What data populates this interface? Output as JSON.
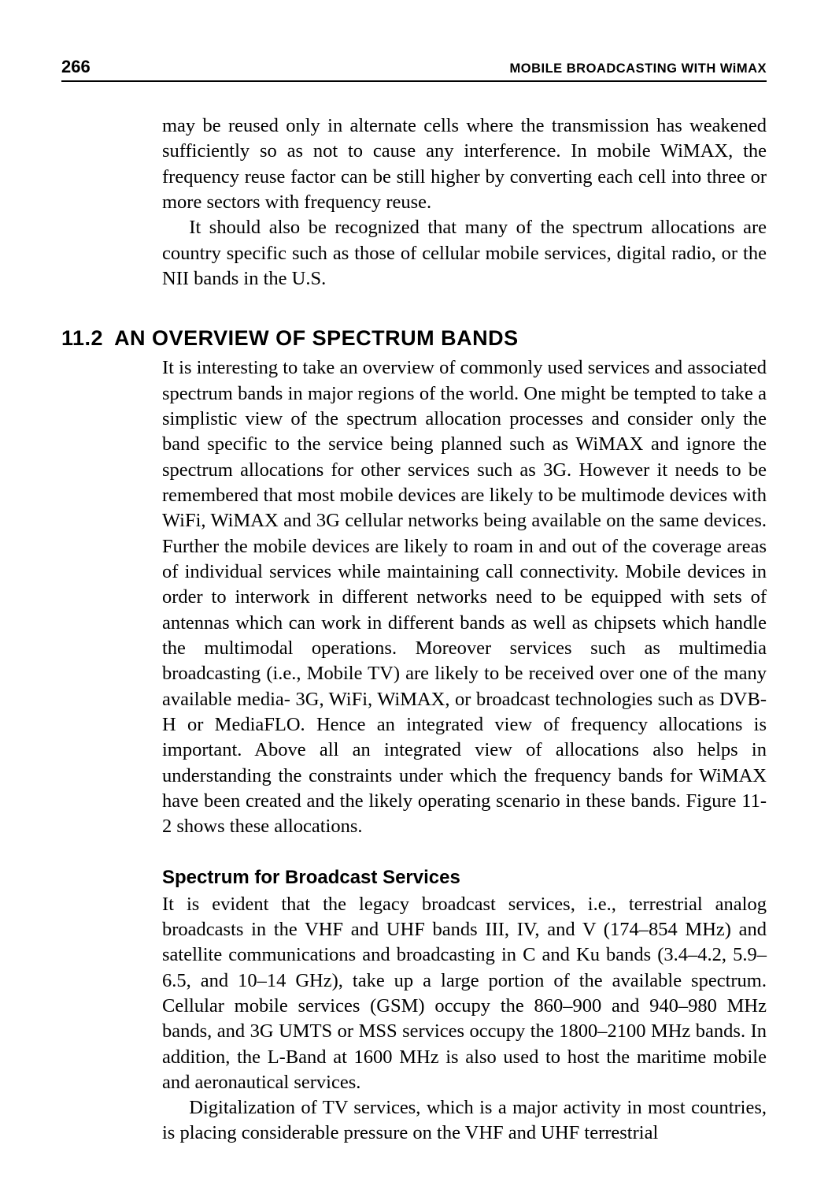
{
  "header": {
    "page_number": "266",
    "running_head": "MOBILE BROADCASTING WITH WiMAX"
  },
  "intro": {
    "p1": "may be reused only in alternate cells where the transmission has weakened sufficiently so as not to cause any interference. In mobile WiMAX, the frequency reuse factor can be still higher by converting each cell into three or more sectors with frequency reuse.",
    "p2": "It should also be recognized that many of the spectrum allocations are country specific such as those of cellular mobile services, digital radio, or the NII bands in the U.S."
  },
  "section": {
    "number": "11.2",
    "title": "AN OVERVIEW OF SPECTRUM BANDS",
    "body": "It is interesting to take an overview of commonly used services and associated spectrum bands in major regions of the world. One might be tempted to take a simplistic view of the spectrum allocation processes and consider only the band specific to the service being planned such as WiMAX and ignore the spectrum allocations for other services such as 3G. However it needs to be remembered that most mobile devices are likely to be multimode devices with WiFi, WiMAX and 3G cellular networks being available on the same devices. Further the mobile devices are likely to roam in and out of the coverage areas of individual services while maintaining call connectivity. Mobile devices in order to interwork in different networks need to be equipped with sets of antennas which can work in different bands as well as chipsets which handle the multimodal operations. Moreover services such as multimedia broadcasting (i.e., Mobile TV) are likely to be received over one of the many available media- 3G, WiFi, WiMAX, or broadcast technologies such as DVB-H or MediaFLO. Hence an integrated view of frequency allocations is important. Above all an integrated view of allocations also helps in understanding the constraints under which the frequency bands for WiMAX have been created and the likely operating scenario in these bands. Figure 11-2 shows these allocations."
  },
  "subsection": {
    "title": "Spectrum for Broadcast Services",
    "p1": "It is evident that the legacy broadcast services, i.e., terrestrial analog broadcasts in the VHF and UHF bands III, IV, and V (174–854 MHz) and satellite communications and broadcasting in C and Ku bands (3.4–4.2, 5.9–6.5, and 10–14 GHz), take up a large portion of the available spectrum. Cellular mobile services (GSM) occupy the 860–900 and 940–980 MHz bands, and 3G UMTS or MSS services occupy the 1800–2100 MHz bands. In addition, the L-Band at 1600 MHz is also used to host the maritime mobile and aeronautical services.",
    "p2": "Digitalization of TV services, which is a major activity in most countries, is placing considerable pressure on the VHF and UHF terrestrial"
  }
}
